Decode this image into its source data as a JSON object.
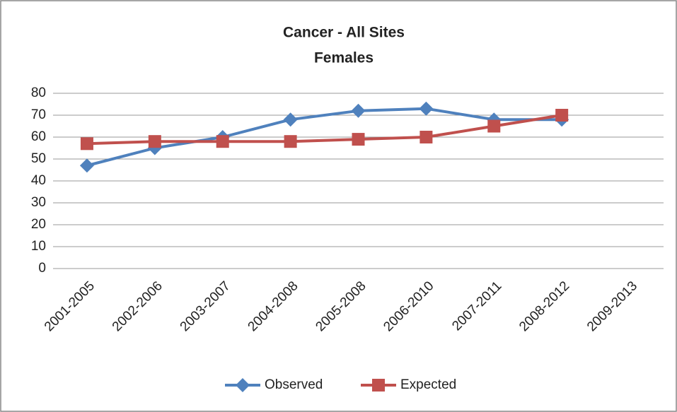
{
  "chart_data": {
    "type": "line",
    "title": "Cancer - All Sites",
    "subtitle": "Females",
    "categories": [
      "2001-2005",
      "2002-2006",
      "2003-2007",
      "2004-2008",
      "2005-2008",
      "2006-2010",
      "2007-2011",
      "2008-2012",
      "2009-2013"
    ],
    "series": [
      {
        "name": "Observed",
        "color": "#4f81bd",
        "marker": "diamond",
        "values": [
          47,
          55,
          60,
          68,
          72,
          73,
          68,
          68,
          null
        ]
      },
      {
        "name": "Expected",
        "color": "#c0504d",
        "marker": "square",
        "values": [
          57,
          58,
          58,
          58,
          59,
          60,
          65,
          70,
          null
        ]
      }
    ],
    "ylim": [
      0,
      80
    ],
    "yticks": [
      0,
      10,
      20,
      30,
      40,
      50,
      60,
      70,
      80
    ],
    "grid": true,
    "legend": "bottom"
  }
}
